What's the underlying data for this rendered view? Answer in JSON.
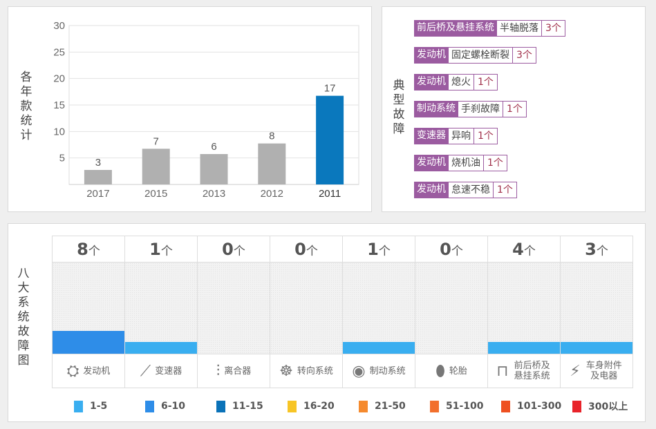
{
  "year_chart": {
    "chart_data": {
      "type": "bar",
      "ylabel": "各年款统计",
      "categories": [
        "2017",
        "2015",
        "2013",
        "2012",
        "2011"
      ],
      "values": [
        3,
        7,
        6,
        8,
        17
      ],
      "ylim": [
        0,
        30
      ],
      "yticks": [
        5,
        10,
        15,
        20,
        25,
        30
      ],
      "grid": true,
      "colors": [
        "#b0b0b0",
        "#b0b0b0",
        "#b0b0b0",
        "#b0b0b0",
        "#0a78bd"
      ]
    }
  },
  "typical": {
    "label": "典型故障",
    "items": [
      {
        "system": "前后桥及悬挂系统",
        "fault": "半轴脱落",
        "count": "3个"
      },
      {
        "system": "发动机",
        "fault": "固定螺栓断裂",
        "count": "3个"
      },
      {
        "system": "发动机",
        "fault": "熄火",
        "count": "1个"
      },
      {
        "system": "制动系统",
        "fault": "手刹故障",
        "count": "1个"
      },
      {
        "system": "变速器",
        "fault": "异响",
        "count": "1个"
      },
      {
        "system": "发动机",
        "fault": "烧机油",
        "count": "1个"
      },
      {
        "system": "发动机",
        "fault": "怠速不稳",
        "count": "1个"
      }
    ]
  },
  "systems": {
    "label": "八大系统故障图",
    "unit": "个",
    "max_scale": 5,
    "items": [
      {
        "name": "发动机",
        "count": "8",
        "icon": "engine-icon",
        "glyph": "⛭",
        "color": "#2e8de8"
      },
      {
        "name": "变速器",
        "count": "1",
        "icon": "gear-shift-icon",
        "glyph": "⟋",
        "color": "#39aef0"
      },
      {
        "name": "离合器",
        "count": "0",
        "icon": "clutch-icon",
        "glyph": "⫶",
        "color": ""
      },
      {
        "name": "转向系统",
        "count": "0",
        "icon": "steering-wheel-icon",
        "glyph": "☸",
        "color": ""
      },
      {
        "name": "制动系统",
        "count": "1",
        "icon": "brake-disc-icon",
        "glyph": "◉",
        "color": "#39aef0"
      },
      {
        "name": "轮胎",
        "count": "0",
        "icon": "tire-icon",
        "glyph": "⬮",
        "color": ""
      },
      {
        "name": "前后桥及悬挂系统",
        "count": "4",
        "icon": "axle-icon",
        "glyph": "⊓",
        "color": "#39aef0"
      },
      {
        "name": "车身附件及电器",
        "count": "3",
        "icon": "battery-icon",
        "glyph": "⚡",
        "color": "#39aef0"
      }
    ],
    "legend": [
      {
        "label": "1-5",
        "color": "#39aef0"
      },
      {
        "label": "6-10",
        "color": "#2e8de8"
      },
      {
        "label": "11-15",
        "color": "#0a72b8"
      },
      {
        "label": "16-20",
        "color": "#f7c526"
      },
      {
        "label": "21-50",
        "color": "#f58a2e"
      },
      {
        "label": "51-100",
        "color": "#f26f2c"
      },
      {
        "label": "101-300",
        "color": "#ee5020"
      },
      {
        "label": "300以上",
        "color": "#e8232a"
      }
    ]
  }
}
